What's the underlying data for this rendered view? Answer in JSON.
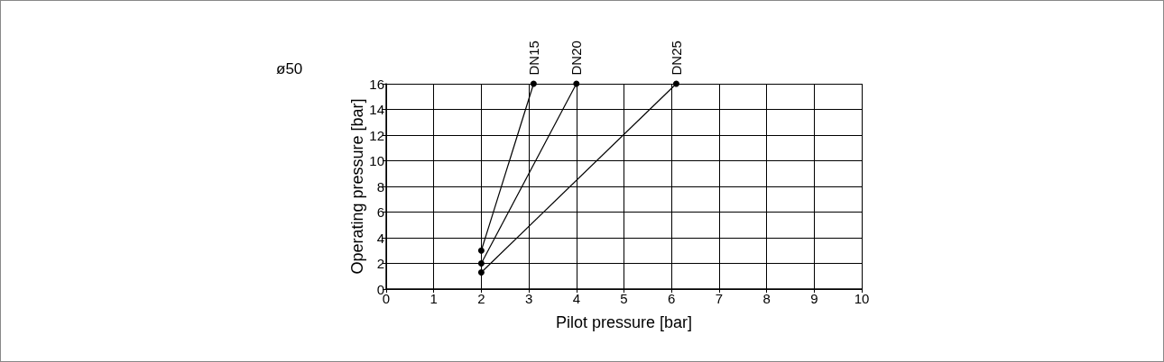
{
  "chart_data": {
    "type": "line",
    "title": "ø50",
    "xlabel": "Pilot pressure [bar]",
    "ylabel": "Operating pressure [bar]",
    "series": [
      {
        "name": "DN15",
        "color": "#000000",
        "x": [
          2,
          3.1
        ],
        "values": [
          3,
          16
        ]
      },
      {
        "name": "DN20",
        "color": "#000000",
        "x": [
          2,
          4
        ],
        "values": [
          2,
          16
        ]
      },
      {
        "name": "DN25",
        "color": "#000000",
        "x": [
          2,
          6.1
        ],
        "values": [
          1.3,
          16
        ]
      }
    ],
    "xlim": [
      0,
      10
    ],
    "xticks": [
      0,
      1,
      2,
      3,
      4,
      5,
      6,
      7,
      8,
      9,
      10
    ],
    "ylim": [
      0,
      16
    ],
    "yticks": [
      0,
      2,
      4,
      6,
      8,
      10,
      12,
      14,
      16
    ],
    "grid": true,
    "legend": false,
    "marker": "circle",
    "line_style": "solid"
  }
}
